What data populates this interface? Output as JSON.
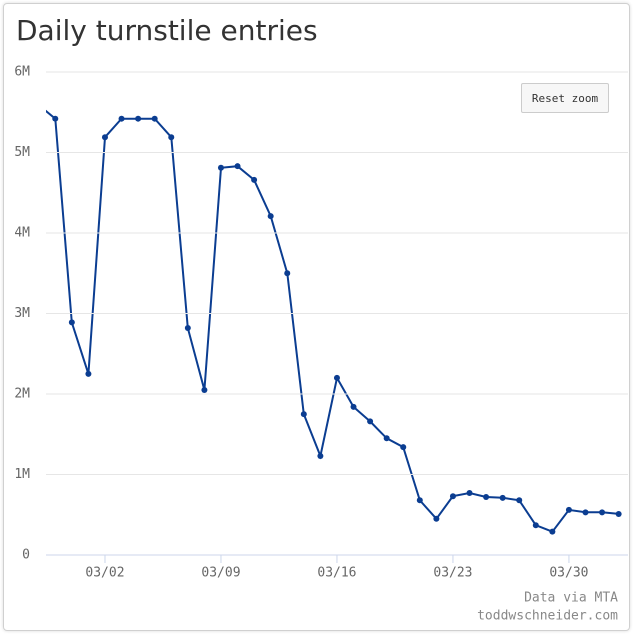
{
  "chart_data": {
    "type": "line",
    "title": "Daily turnstile entries",
    "annotations": [
      "Data via MTA",
      "toddwschneider.com"
    ],
    "button": "Reset zoom",
    "categories": [
      null,
      null,
      null,
      null,
      "03/02",
      null,
      null,
      null,
      null,
      null,
      null,
      "03/09",
      null,
      null,
      null,
      null,
      null,
      null,
      "03/16",
      null,
      null,
      null,
      null,
      null,
      null,
      "03/23",
      null,
      null,
      null,
      null,
      null,
      null,
      "03/30",
      null,
      null,
      null
    ],
    "values": [
      5590000,
      5420000,
      2890000,
      2250000,
      5190000,
      5420000,
      5420000,
      5420000,
      5190000,
      2820000,
      2050000,
      4810000,
      4830000,
      4660000,
      4210000,
      3500000,
      1750000,
      1230000,
      2200000,
      1840000,
      1660000,
      1450000,
      1340000,
      680000,
      450000,
      730000,
      770000,
      720000,
      710000,
      680000,
      370000,
      290000,
      560000,
      530000,
      530000,
      510000
    ],
    "color": "#0b3d91",
    "ylim": [
      0,
      6000000
    ],
    "yticks": [
      {
        "value": 0,
        "label": "0"
      },
      {
        "value": 1000000,
        "label": "1M"
      },
      {
        "value": 2000000,
        "label": "2M"
      },
      {
        "value": 3000000,
        "label": "3M"
      },
      {
        "value": 4000000,
        "label": "4M"
      },
      {
        "value": 5000000,
        "label": "5M"
      },
      {
        "value": 6000000,
        "label": "6M"
      }
    ],
    "grid": true
  }
}
